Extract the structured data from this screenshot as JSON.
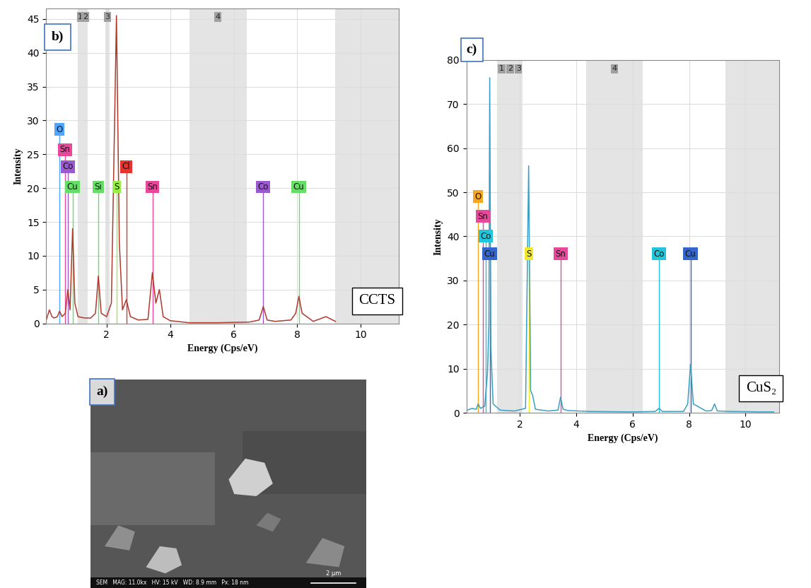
{
  "chart_data": [
    {
      "type": "line",
      "annotations": [
        "b)",
        "CCTS"
      ],
      "x_label": "Energy (Cps/eV)",
      "y_label": "Intensity",
      "x": [
        0.1,
        0.2,
        0.28,
        0.35,
        0.45,
        0.52,
        0.6,
        0.7,
        0.78,
        0.85,
        0.93,
        1.0,
        1.1,
        1.3,
        1.5,
        1.65,
        1.74,
        1.83,
        2.0,
        2.15,
        2.31,
        2.4,
        2.5,
        2.62,
        2.75,
        3.0,
        3.3,
        3.44,
        3.55,
        3.66,
        3.78,
        4.0,
        4.6,
        5.5,
        6.5,
        6.8,
        6.93,
        7.05,
        7.3,
        7.8,
        7.95,
        8.05,
        8.15,
        8.5,
        8.9,
        9.2
      ],
      "values": [
        0.5,
        2,
        1,
        0.8,
        1,
        1.8,
        1,
        1.5,
        5,
        2,
        14,
        3,
        1,
        0.8,
        0.8,
        1.5,
        7,
        1.5,
        1,
        3,
        45.5,
        12,
        2,
        3.5,
        1,
        0.5,
        0.6,
        7.5,
        3,
        5,
        1,
        0.4,
        0.1,
        0.1,
        0.2,
        0.5,
        2.5,
        0.5,
        0.3,
        0.5,
        1.5,
        4,
        1.5,
        0.3,
        1,
        0.3
      ],
      "color": "#b03a2e",
      "xlim": [
        0.1,
        11.2
      ],
      "ylim": [
        0,
        46.5
      ],
      "xticks": [
        2,
        4,
        6,
        8,
        10
      ],
      "yticks": [
        0,
        5,
        10,
        15,
        20,
        25,
        30,
        35,
        40,
        45
      ],
      "grid": true,
      "element_lines": [
        {
          "label": "O",
          "x": 0.52,
          "height": 28,
          "color": "#4da6ff"
        },
        {
          "label": "Sn",
          "x": 0.69,
          "height": 25,
          "color": "#e8489a"
        },
        {
          "label": "Co",
          "x": 0.78,
          "height": 22.5,
          "color": "#9b59d0"
        },
        {
          "label": "Cu",
          "x": 0.93,
          "height": 19.5,
          "color": "#66dd66"
        },
        {
          "label": "Si",
          "x": 1.74,
          "height": 19.5,
          "color": "#66dd66"
        },
        {
          "label": "S",
          "x": 2.31,
          "height": 19.5,
          "color": "#99ee44"
        },
        {
          "label": "Cl",
          "x": 2.62,
          "height": 22.5,
          "color": "#e8322b"
        },
        {
          "label": "Sn",
          "x": 3.44,
          "height": 19.5,
          "color": "#e8489a"
        },
        {
          "label": "Co",
          "x": 6.93,
          "height": 19.5,
          "color": "#9b59d0"
        },
        {
          "label": "Cu",
          "x": 8.05,
          "height": 19.5,
          "color": "#66dd66"
        }
      ],
      "regions": [
        {
          "label": "1",
          "start": 1.1,
          "end": 1.25
        },
        {
          "label": "2",
          "start": 1.25,
          "end": 1.4
        },
        {
          "label": "3",
          "start": 1.95,
          "end": 2.1
        },
        {
          "label": "4",
          "start": 4.6,
          "end": 6.4
        },
        {
          "label": null,
          "start": 9.2,
          "end": 11.2
        }
      ]
    },
    {
      "type": "line",
      "annotations": [
        "c)",
        "CuS₂"
      ],
      "x_label": "Energy (Cps/eV)",
      "y_label": "Intensity",
      "x": [
        0.1,
        0.3,
        0.45,
        0.52,
        0.6,
        0.75,
        0.85,
        0.9,
        0.93,
        0.97,
        1.05,
        1.3,
        1.8,
        2.2,
        2.31,
        2.38,
        2.45,
        2.55,
        3.0,
        3.35,
        3.44,
        3.53,
        3.7,
        4.5,
        6.0,
        6.8,
        6.93,
        7.05,
        7.8,
        7.95,
        8.05,
        8.15,
        8.6,
        8.8,
        8.9,
        9.0,
        9.5,
        10.5,
        11.0
      ],
      "values": [
        0.5,
        1,
        0.8,
        2,
        1,
        1.5,
        9,
        20,
        76,
        15,
        2,
        0.6,
        0.4,
        1,
        56,
        5,
        4,
        0.8,
        0.4,
        0.6,
        3.5,
        0.8,
        0.5,
        0.3,
        0.2,
        0.3,
        1,
        0.3,
        0.3,
        2,
        11,
        2,
        0.4,
        0.5,
        2,
        0.4,
        0.3,
        0.2,
        0.2
      ],
      "color": "#3a9fc4",
      "xlim": [
        0.1,
        11.2
      ],
      "ylim": [
        0,
        80
      ],
      "xticks": [
        2,
        4,
        6,
        8,
        10
      ],
      "yticks": [
        0,
        10,
        20,
        30,
        40,
        50,
        60,
        70,
        80
      ],
      "grid": true,
      "element_lines": [
        {
          "label": "O",
          "x": 0.52,
          "height": 48,
          "color": "#f5a623"
        },
        {
          "label": "Sn",
          "x": 0.69,
          "height": 43.5,
          "color": "#e8489a"
        },
        {
          "label": "Co",
          "x": 0.78,
          "height": 39,
          "color": "#22c5d9"
        },
        {
          "label": "Cu",
          "x": 0.93,
          "height": 35,
          "color": "#3366cc"
        },
        {
          "label": "S",
          "x": 2.31,
          "height": 35,
          "color": "#f2e82b"
        },
        {
          "label": "Sn",
          "x": 3.44,
          "height": 35,
          "color": "#e8489a"
        },
        {
          "label": "Co",
          "x": 6.93,
          "height": 35,
          "color": "#22c5d9"
        },
        {
          "label": "Cu",
          "x": 8.05,
          "height": 35,
          "color": "#3366cc"
        }
      ],
      "regions": [
        {
          "label": "1",
          "start": 1.2,
          "end": 1.5
        },
        {
          "label": "2",
          "start": 1.5,
          "end": 1.8
        },
        {
          "label": "3",
          "start": 1.8,
          "end": 2.1
        },
        {
          "label": "4",
          "start": 4.35,
          "end": 6.35
        },
        {
          "label": null,
          "start": 9.3,
          "end": 11.2
        }
      ]
    }
  ],
  "image": {
    "panel_label": "a)",
    "caption": "SEM   MAG: 11.0kx   HV: 15 kV   WD: 8.9 mm   Px: 18 nm",
    "scale_bar": "2 µm"
  }
}
